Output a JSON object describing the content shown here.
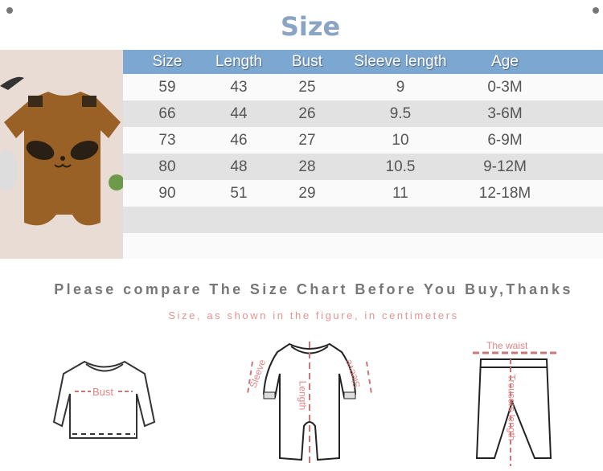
{
  "title": "Size",
  "table": {
    "headers": [
      "Size",
      "Length",
      "Bust",
      "Sleeve length",
      "Age"
    ],
    "rows": [
      [
        "59",
        "43",
        "25",
        "9",
        "0-3M"
      ],
      [
        "66",
        "44",
        "26",
        "9.5",
        "3-6M"
      ],
      [
        "73",
        "46",
        "27",
        "10",
        "6-9M"
      ],
      [
        "80",
        "48",
        "28",
        "10.5",
        "9-12M"
      ],
      [
        "90",
        "51",
        "29",
        "11",
        "12-18M"
      ]
    ]
  },
  "notice": "Please compare The Size Chart Before You Buy,Thanks",
  "subnotice": "Size, as shown in the figure, in centimeters",
  "diagram": {
    "bust": "Bust",
    "sleeve_left": "Sleeve",
    "sleeve_right": "Sleeve",
    "length": "Length",
    "waist": "The waist",
    "trousers_length": "Trousers length"
  },
  "colors": {
    "header": "#7ba7d0",
    "title": "#8aa4c4",
    "label": "#e08585",
    "romper": "#9a6127"
  }
}
